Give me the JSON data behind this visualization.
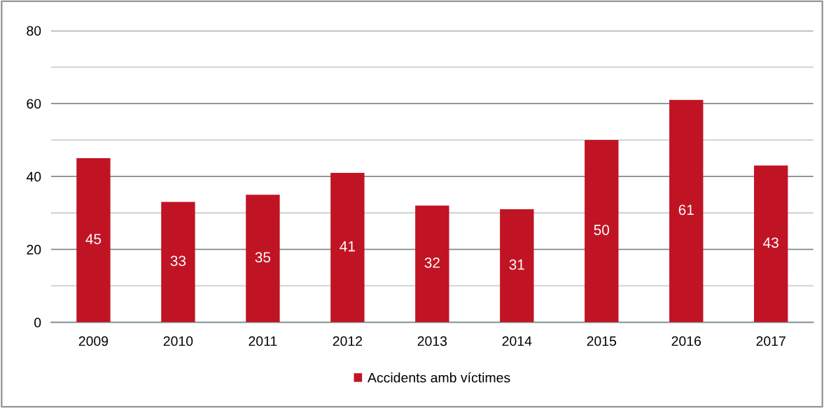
{
  "chart_data": {
    "type": "bar",
    "categories": [
      "2009",
      "2010",
      "2011",
      "2012",
      "2013",
      "2014",
      "2015",
      "2016",
      "2017"
    ],
    "series": [
      {
        "name": "Accidents amb víctimes",
        "color": "#c01424",
        "values": [
          45,
          33,
          35,
          41,
          32,
          31,
          50,
          61,
          43
        ]
      }
    ],
    "ylim": [
      0,
      80
    ],
    "yticks": [
      0,
      {
        "value": 10,
        "label": null
      },
      20,
      {
        "value": 30,
        "label": null
      },
      40,
      {
        "value": 50,
        "label": null
      },
      60,
      {
        "value": 70,
        "label": null
      },
      80
    ],
    "grid": "y",
    "legend": "bottom",
    "data_labels": true
  }
}
